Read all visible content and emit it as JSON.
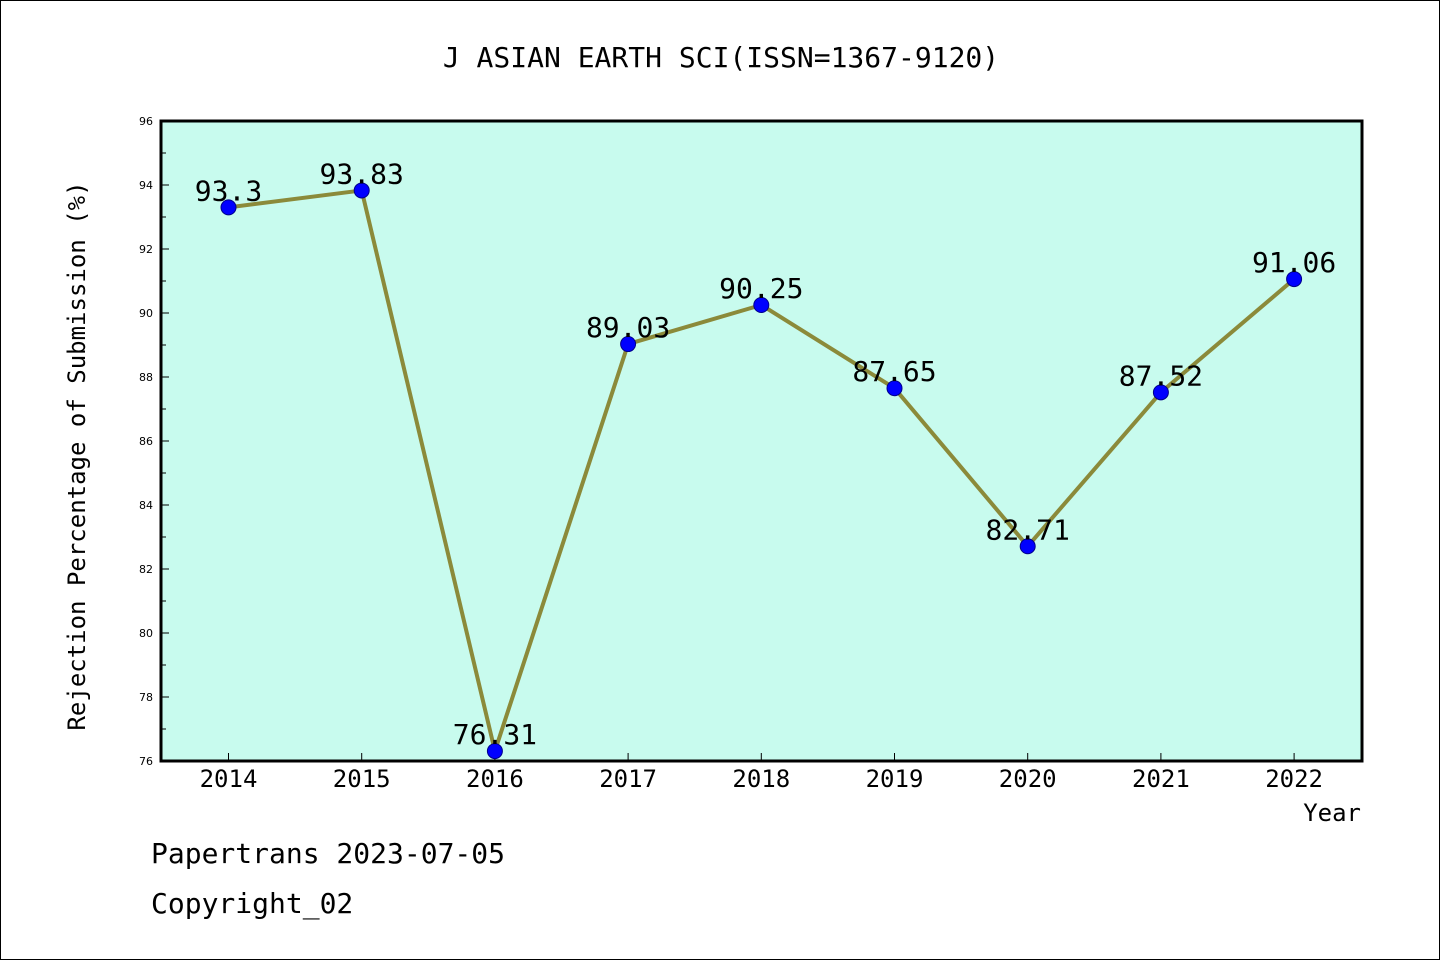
{
  "chart_data": {
    "type": "line",
    "title": "J ASIAN EARTH SCI(ISSN=1367-9120)",
    "xlabel": "Year",
    "ylabel": "Rejection Percentage of Submission (%)",
    "categories": [
      "2014",
      "2015",
      "2016",
      "2017",
      "2018",
      "2019",
      "2020",
      "2021",
      "2022"
    ],
    "series": [
      {
        "values": [
          93.3,
          93.83,
          76.31,
          89.03,
          90.25,
          87.65,
          82.71,
          87.52,
          91.06
        ]
      }
    ],
    "data_labels": [
      "93.3",
      "93.83",
      "76.31",
      "89.03",
      "90.25",
      "87.65",
      "82.71",
      "87.52",
      "91.06"
    ],
    "ylim": [
      76,
      96
    ],
    "yticks": [
      "76",
      "78",
      "80",
      "82",
      "84",
      "86",
      "88",
      "90",
      "92",
      "94",
      "96"
    ],
    "grid": false,
    "colors": {
      "plot_background": "#c8fbee",
      "line": "#8b8a3a",
      "marker": "#0000ff"
    }
  },
  "footer": {
    "line1": "Papertrans 2023-07-05",
    "line2": "Copyright_02"
  }
}
